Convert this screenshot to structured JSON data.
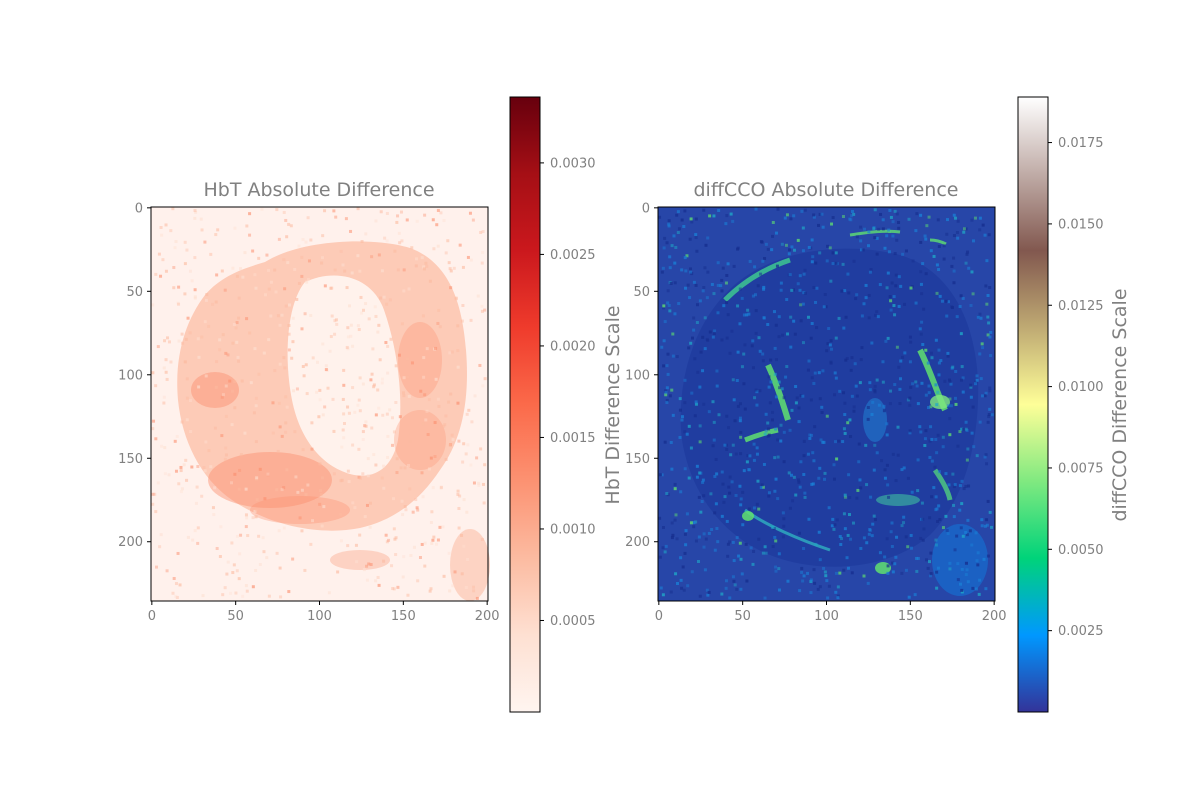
{
  "text_color": "#808080",
  "chart_data": [
    {
      "type": "heatmap",
      "title": "HbT Absolute Difference",
      "colormap": "Reds",
      "colormap_stops": [
        "#fff5f0",
        "#fee0d2",
        "#fcbba1",
        "#fc9272",
        "#fb6a4a",
        "#ef3b2c",
        "#cb181d",
        "#a50f15",
        "#67000d"
      ],
      "image_size": [
        201,
        236
      ],
      "x_ticks": [
        "0",
        "50",
        "100",
        "150",
        "200"
      ],
      "y_ticks": [
        "0",
        "50",
        "100",
        "150",
        "200"
      ],
      "colorbar": {
        "label": "HbT Difference Scale",
        "range": [
          0.0,
          0.00336
        ],
        "ticks": [
          0.0005,
          0.001,
          0.0015,
          0.002,
          0.0025,
          0.003
        ],
        "tick_labels": [
          "0.0005",
          "0.0010",
          "0.0015",
          "0.0020",
          "0.0025",
          "0.0030"
        ]
      }
    },
    {
      "type": "heatmap",
      "title": "diffCCO Absolute Difference",
      "colormap": "terrain",
      "colormap_stops": [
        "#333399",
        "#0098ff",
        "#00d37a",
        "#80e980",
        "#fefe98",
        "#bfaa73",
        "#82584f",
        "#c0aca7",
        "#ffffff"
      ],
      "image_size": [
        201,
        236
      ],
      "x_ticks": [
        "0",
        "50",
        "100",
        "150",
        "200"
      ],
      "y_ticks": [
        "0",
        "50",
        "100",
        "150",
        "200"
      ],
      "colorbar": {
        "label": "diffCCO Difference Scale",
        "range": [
          0.0,
          0.0189
        ],
        "ticks": [
          0.0025,
          0.005,
          0.0075,
          0.01,
          0.0125,
          0.015,
          0.0175
        ],
        "tick_labels": [
          "0.0025",
          "0.0050",
          "0.0075",
          "0.0100",
          "0.0125",
          "0.0150",
          "0.0175"
        ]
      }
    }
  ]
}
